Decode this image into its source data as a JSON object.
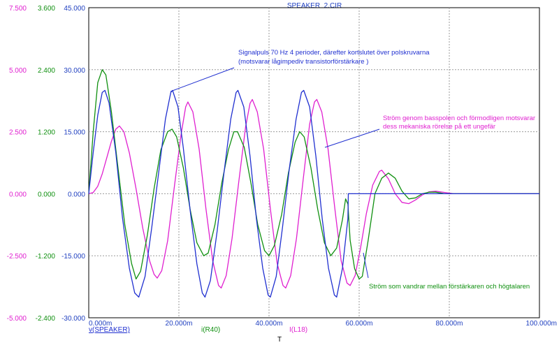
{
  "chart_data": {
    "type": "line",
    "title": "SPEAKER_2.CIR",
    "xlabel": "T",
    "xlim": [
      0,
      100
    ],
    "x_ticks": [
      "0.000m",
      "20.000m",
      "40.000m",
      "60.000m",
      "80.000m",
      "100.000m"
    ],
    "y_axes": [
      {
        "color": "#e020d0",
        "range": [
          -5,
          7.5
        ],
        "ticks": [
          "7.500",
          "5.000",
          "2.500",
          "0.000",
          "-2.500",
          "-5.000"
        ]
      },
      {
        "color": "#109010",
        "range": [
          -2.4,
          3.6
        ],
        "ticks": [
          "3.600",
          "2.400",
          "1.200",
          "0.000",
          "-1.200",
          "-2.400"
        ]
      },
      {
        "color": "#2040c0",
        "range": [
          -30,
          45
        ],
        "ticks": [
          "45.000",
          "30.000",
          "15.000",
          "0.000",
          "-15.000",
          "-30.000"
        ]
      }
    ],
    "grid": true,
    "series": [
      {
        "name": "v(SPEAKER)",
        "color": "#2030d0",
        "axis": 2,
        "points": [
          [
            0,
            0
          ],
          [
            1,
            10
          ],
          [
            2,
            19
          ],
          [
            3,
            24.5
          ],
          [
            3.6,
            25
          ],
          [
            4.5,
            22
          ],
          [
            6,
            10
          ],
          [
            7.5,
            -6
          ],
          [
            9,
            -18
          ],
          [
            10.2,
            -24
          ],
          [
            11.1,
            -25
          ],
          [
            12.5,
            -20
          ],
          [
            14,
            -8
          ],
          [
            15.5,
            5
          ],
          [
            17,
            18
          ],
          [
            18.2,
            24.5
          ],
          [
            18.6,
            25
          ],
          [
            19.8,
            21
          ],
          [
            21,
            11
          ],
          [
            22.5,
            -4
          ],
          [
            24,
            -17
          ],
          [
            25.2,
            -24
          ],
          [
            25.8,
            -25
          ],
          [
            27,
            -21
          ],
          [
            28.5,
            -9
          ],
          [
            30,
            5
          ],
          [
            31.5,
            18
          ],
          [
            32.7,
            24.5
          ],
          [
            33.1,
            25
          ],
          [
            34.4,
            21
          ],
          [
            35.8,
            9
          ],
          [
            37.2,
            -6
          ],
          [
            38.6,
            -18
          ],
          [
            39.8,
            -24.5
          ],
          [
            40.3,
            -25
          ],
          [
            41.6,
            -20
          ],
          [
            43,
            -8
          ],
          [
            44.5,
            6
          ],
          [
            46,
            18
          ],
          [
            47.2,
            24.5
          ],
          [
            47.7,
            25
          ],
          [
            49,
            21
          ],
          [
            50.4,
            9
          ],
          [
            51.8,
            -6
          ],
          [
            53.2,
            -18
          ],
          [
            54.5,
            -24.5
          ],
          [
            55,
            -25
          ],
          [
            56.3,
            -18
          ],
          [
            57.5,
            -6
          ],
          [
            57.6,
            0
          ],
          [
            100,
            0
          ]
        ]
      },
      {
        "name": "i(R40)",
        "color": "#109010",
        "axis": 1,
        "points": [
          [
            0,
            0
          ],
          [
            1,
            1.2
          ],
          [
            2,
            2.15
          ],
          [
            3,
            2.4
          ],
          [
            3.8,
            2.3
          ],
          [
            5,
            1.6
          ],
          [
            6.5,
            0.5
          ],
          [
            8,
            -0.6
          ],
          [
            9.5,
            -1.35
          ],
          [
            10.5,
            -1.65
          ],
          [
            11.5,
            -1.5
          ],
          [
            13,
            -0.8
          ],
          [
            14.5,
            0.1
          ],
          [
            16,
            0.85
          ],
          [
            17.5,
            1.2
          ],
          [
            18.5,
            1.25
          ],
          [
            19.5,
            1.1
          ],
          [
            21,
            0.5
          ],
          [
            22.5,
            -0.3
          ],
          [
            24,
            -0.95
          ],
          [
            25.5,
            -1.2
          ],
          [
            26.5,
            -1.15
          ],
          [
            28,
            -0.6
          ],
          [
            29.5,
            0.2
          ],
          [
            31,
            0.85
          ],
          [
            32.2,
            1.2
          ],
          [
            33,
            1.2
          ],
          [
            34.5,
            0.9
          ],
          [
            36,
            0.2
          ],
          [
            37.5,
            -0.6
          ],
          [
            39,
            -1.1
          ],
          [
            40,
            -1.2
          ],
          [
            41.2,
            -1
          ],
          [
            42.8,
            -0.4
          ],
          [
            44.3,
            0.4
          ],
          [
            45.8,
            1
          ],
          [
            46.8,
            1.2
          ],
          [
            47.8,
            1.1
          ],
          [
            49.3,
            0.5
          ],
          [
            50.8,
            -0.3
          ],
          [
            52.3,
            -0.95
          ],
          [
            53.7,
            -1.2
          ],
          [
            55,
            -1.05
          ],
          [
            56.3,
            -0.5
          ],
          [
            57,
            -0.1
          ],
          [
            57.5,
            -0.2
          ],
          [
            58,
            -0.9
          ],
          [
            59,
            -1.45
          ],
          [
            60,
            -1.65
          ],
          [
            60.7,
            -1.6
          ],
          [
            62,
            -0.9
          ],
          [
            63.5,
            0
          ],
          [
            65,
            0.3
          ],
          [
            66.5,
            0.4
          ],
          [
            68,
            0.3
          ],
          [
            69.5,
            0.05
          ],
          [
            71,
            -0.1
          ],
          [
            72.5,
            -0.08
          ],
          [
            74,
            0
          ],
          [
            75.5,
            0.03
          ],
          [
            77,
            0.03
          ],
          [
            79,
            0
          ],
          [
            85,
            0
          ],
          [
            100,
            0
          ]
        ]
      },
      {
        "name": "I(L18)",
        "color": "#e020d0",
        "axis": 0,
        "points": [
          [
            0,
            0
          ],
          [
            1,
            0.05
          ],
          [
            2,
            0.3
          ],
          [
            3,
            0.8
          ],
          [
            4,
            1.45
          ],
          [
            5,
            2.1
          ],
          [
            6,
            2.6
          ],
          [
            6.8,
            2.73
          ],
          [
            7.8,
            2.5
          ],
          [
            9,
            1.65
          ],
          [
            10.5,
            0.2
          ],
          [
            12,
            -1.4
          ],
          [
            13.5,
            -2.7
          ],
          [
            14.5,
            -3.25
          ],
          [
            15.2,
            -3.4
          ],
          [
            16.2,
            -3.1
          ],
          [
            17.5,
            -1.9
          ],
          [
            19,
            0.3
          ],
          [
            20.5,
            2.4
          ],
          [
            21.5,
            3.5
          ],
          [
            22,
            3.7
          ],
          [
            23.1,
            3.3
          ],
          [
            24.5,
            1.8
          ],
          [
            26,
            -0.6
          ],
          [
            27.5,
            -2.7
          ],
          [
            28.8,
            -3.7
          ],
          [
            29.4,
            -3.8
          ],
          [
            30.5,
            -3.3
          ],
          [
            31.8,
            -1.8
          ],
          [
            33.3,
            0.5
          ],
          [
            34.8,
            2.7
          ],
          [
            35.8,
            3.65
          ],
          [
            36.3,
            3.8
          ],
          [
            37.4,
            3.3
          ],
          [
            38.8,
            1.8
          ],
          [
            40.3,
            -0.6
          ],
          [
            41.8,
            -2.8
          ],
          [
            43.1,
            -3.7
          ],
          [
            43.7,
            -3.8
          ],
          [
            44.8,
            -3.3
          ],
          [
            46.1,
            -1.8
          ],
          [
            47.6,
            0.6
          ],
          [
            49,
            2.8
          ],
          [
            50.1,
            3.7
          ],
          [
            50.6,
            3.8
          ],
          [
            51.7,
            3.3
          ],
          [
            53.1,
            1.8
          ],
          [
            54.6,
            -0.6
          ],
          [
            56,
            -2.7
          ],
          [
            57.3,
            -3.6
          ],
          [
            58,
            -3.7
          ],
          [
            59.1,
            -3.3
          ],
          [
            60.3,
            -2.2
          ],
          [
            61.6,
            -0.8
          ],
          [
            63,
            0.35
          ],
          [
            64.5,
            0.9
          ],
          [
            65,
            0.95
          ],
          [
            66.5,
            0.6
          ],
          [
            68,
            0
          ],
          [
            69.5,
            -0.35
          ],
          [
            71,
            -0.4
          ],
          [
            72.5,
            -0.25
          ],
          [
            74,
            -0.05
          ],
          [
            75.5,
            0.08
          ],
          [
            77,
            0.1
          ],
          [
            79,
            0.05
          ],
          [
            81,
            0
          ],
          [
            85,
            0
          ],
          [
            100,
            0
          ]
        ]
      }
    ],
    "legend_labels": [
      "v(SPEAKER)",
      "i(R40)",
      "I(L18)"
    ],
    "annotations": [
      {
        "text_lines": [
          "Signalpuls 70 Hz 4 perioder, därefter kortslutet över polskruvarna",
          "(motsvarar lågimpediv transistorförstärkare )"
        ],
        "color": "#2030d0",
        "target": "v(SPEAKER)"
      },
      {
        "text_lines": [
          "Ström genom basspolen och förmodligen motsvarar",
          "dess mekaniska rörelse på ett ungefär"
        ],
        "color": "#e020d0",
        "target": "I(L18)"
      },
      {
        "text_lines": [
          "Ström som vandrar mellan förstärkaren och högtalaren"
        ],
        "color": "#109010",
        "target": "i(R40)"
      }
    ]
  }
}
